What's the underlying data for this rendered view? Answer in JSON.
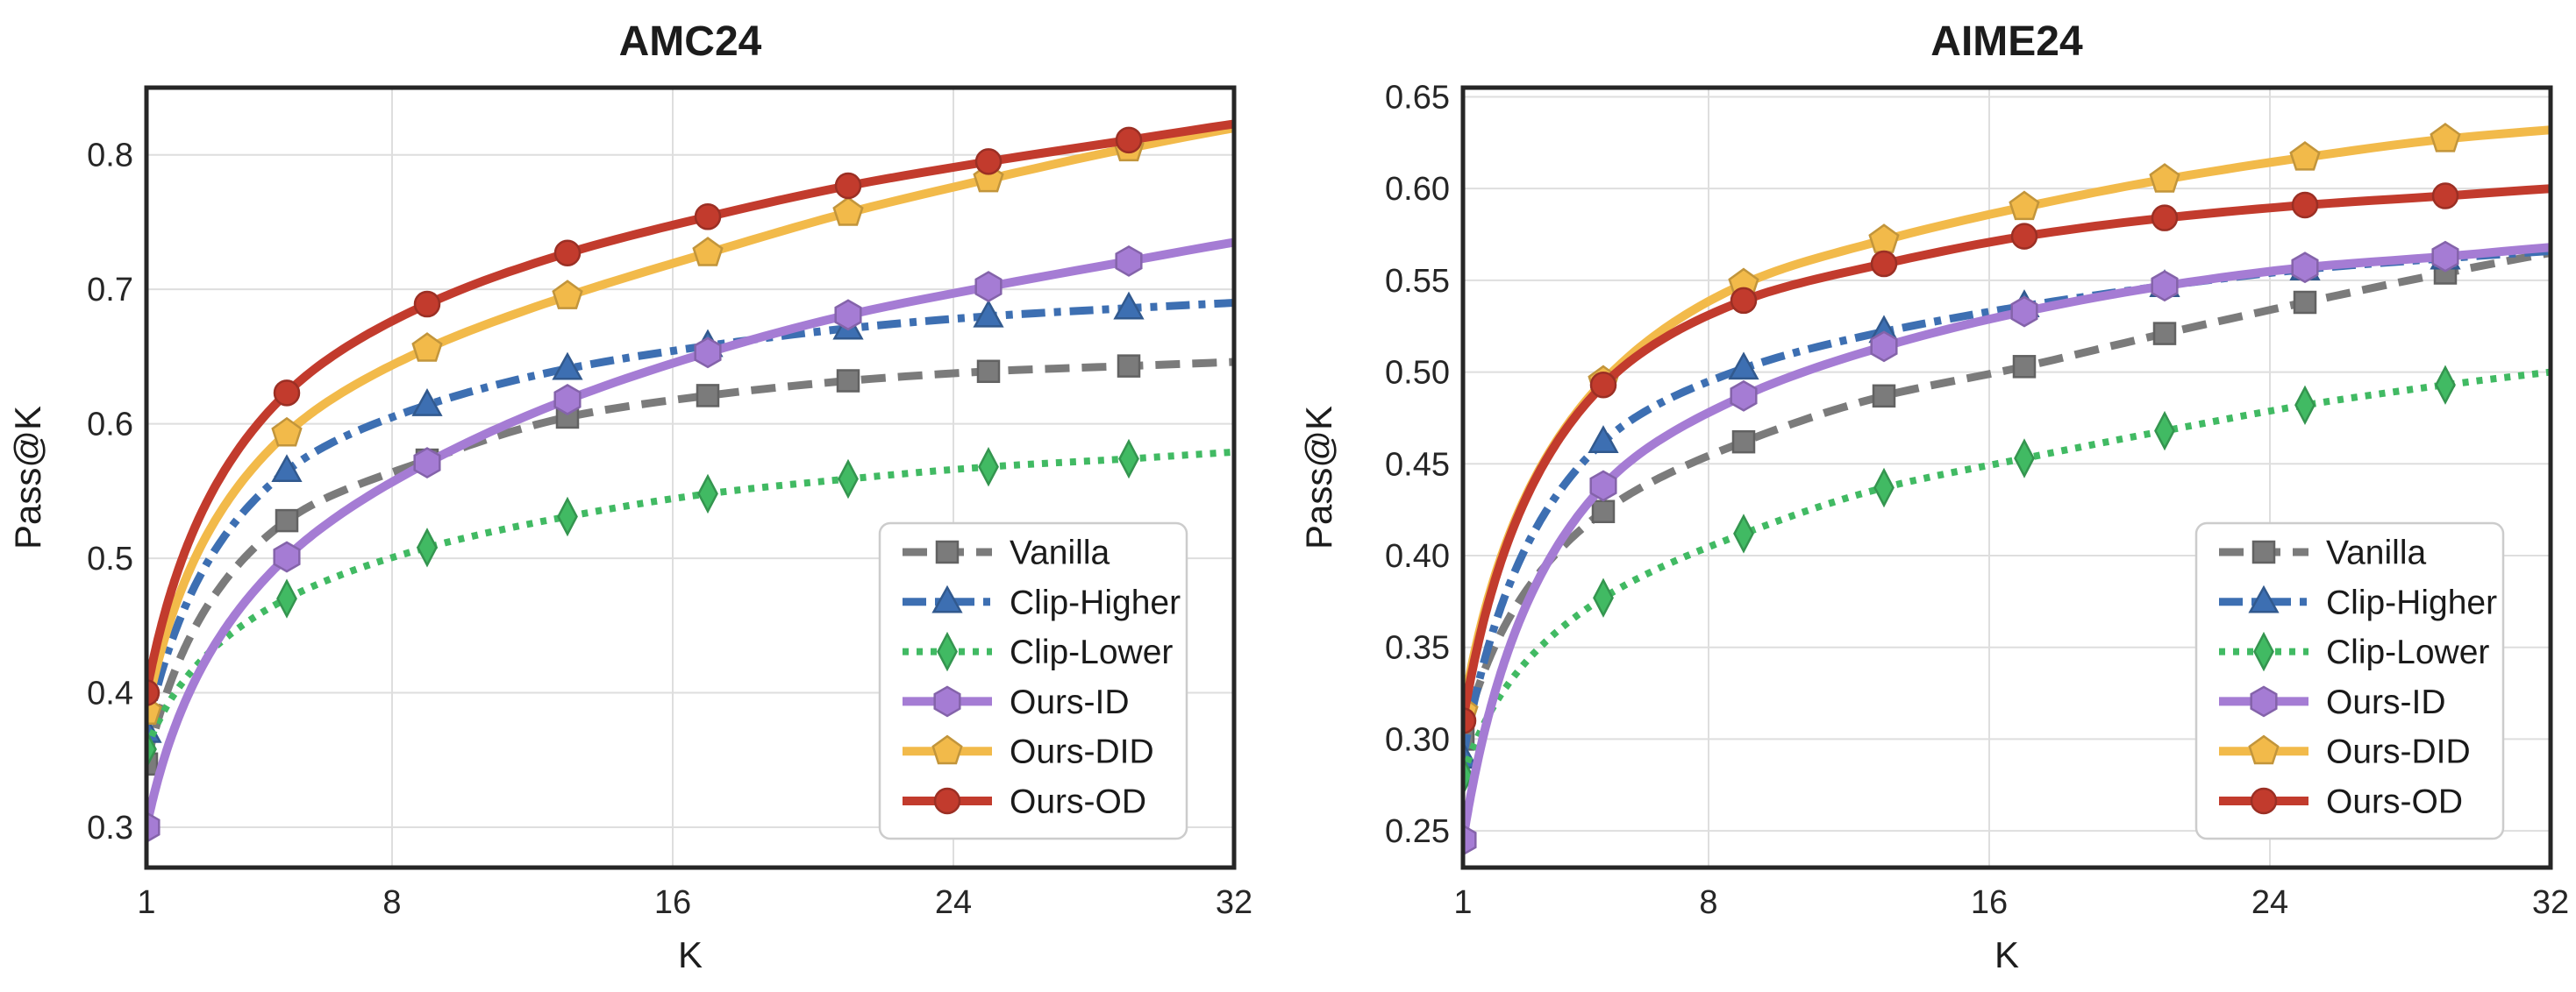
{
  "colors": {
    "background": "#ffffff",
    "frame": "#262626",
    "grid": "#dedede",
    "text": "#1c1c1c",
    "legend_border": "#cccccc",
    "legend_background": "#ffffff"
  },
  "chart_data": [
    {
      "type": "line",
      "title": "AMC24",
      "xlabel": "K",
      "ylabel": "Pass@K",
      "xlim": [
        1,
        32
      ],
      "ylim": [
        0.27,
        0.85
      ],
      "grid": true,
      "legend_position": "lower right",
      "x": [
        1,
        5,
        9,
        13,
        17,
        21,
        25,
        29,
        32
      ],
      "markers_at_x": [
        1,
        5,
        9,
        13,
        17,
        21,
        25,
        29
      ],
      "x_ticks": [
        1,
        8,
        16,
        24,
        32
      ],
      "x_tick_labels": [
        "1",
        "8",
        "16",
        "24",
        "32"
      ],
      "y_ticks": [
        0.3,
        0.4,
        0.5,
        0.6,
        0.7,
        0.8
      ],
      "y_tick_labels": [
        "0.3",
        "0.4",
        "0.5",
        "0.6",
        "0.7",
        "0.8"
      ],
      "series": [
        {
          "name": "Vanilla",
          "color": "#7b7b7b",
          "linestyle": "dashed",
          "marker": "square",
          "values": [
            0.347,
            0.528,
            0.573,
            0.605,
            0.621,
            0.632,
            0.639,
            0.643,
            0.646
          ]
        },
        {
          "name": "Clip-Higher",
          "color": "#3d6fb2",
          "linestyle": "dashdot",
          "marker": "triangle",
          "values": [
            0.371,
            0.565,
            0.614,
            0.641,
            0.658,
            0.671,
            0.68,
            0.686,
            0.69
          ]
        },
        {
          "name": "Clip-Lower",
          "color": "#41ba63",
          "linestyle": "dotted",
          "marker": "thin-diamond",
          "values": [
            0.358,
            0.47,
            0.508,
            0.531,
            0.548,
            0.559,
            0.568,
            0.574,
            0.579
          ]
        },
        {
          "name": "Ours-ID",
          "color": "#a57cd4",
          "linestyle": "solid",
          "marker": "hexagon",
          "values": [
            0.3,
            0.501,
            0.571,
            0.618,
            0.653,
            0.681,
            0.702,
            0.721,
            0.735
          ]
        },
        {
          "name": "Ours-DID",
          "color": "#f2ba4a",
          "linestyle": "solid",
          "marker": "pentagon",
          "values": [
            0.386,
            0.593,
            0.656,
            0.695,
            0.727,
            0.757,
            0.782,
            0.805,
            0.82
          ]
        },
        {
          "name": "Ours-OD",
          "color": "#c23b2d",
          "linestyle": "solid",
          "marker": "circle",
          "values": [
            0.4,
            0.623,
            0.689,
            0.727,
            0.754,
            0.777,
            0.795,
            0.811,
            0.823
          ]
        }
      ]
    },
    {
      "type": "line",
      "title": "AIME24",
      "xlabel": "K",
      "ylabel": "Pass@K",
      "xlim": [
        1,
        32
      ],
      "ylim": [
        0.23,
        0.655
      ],
      "grid": true,
      "legend_position": "lower right",
      "x": [
        1,
        5,
        9,
        13,
        17,
        21,
        25,
        29,
        32
      ],
      "markers_at_x": [
        1,
        5,
        9,
        13,
        17,
        21,
        25,
        29
      ],
      "x_ticks": [
        1,
        8,
        16,
        24,
        32
      ],
      "x_tick_labels": [
        "1",
        "8",
        "16",
        "24",
        "32"
      ],
      "y_ticks": [
        0.25,
        0.3,
        0.35,
        0.4,
        0.45,
        0.5,
        0.55,
        0.6,
        0.65
      ],
      "y_tick_labels": [
        "0.25",
        "0.30",
        "0.35",
        "0.40",
        "0.45",
        "0.50",
        "0.55",
        "0.60",
        "0.65"
      ],
      "series": [
        {
          "name": "Vanilla",
          "color": "#7b7b7b",
          "linestyle": "dashed",
          "marker": "square",
          "values": [
            0.3,
            0.424,
            0.462,
            0.487,
            0.503,
            0.521,
            0.538,
            0.554,
            0.565
          ]
        },
        {
          "name": "Clip-Higher",
          "color": "#3d6fb2",
          "linestyle": "dashdot",
          "marker": "triangle",
          "values": [
            0.29,
            0.462,
            0.502,
            0.522,
            0.536,
            0.547,
            0.556,
            0.562,
            0.566
          ]
        },
        {
          "name": "Clip-Lower",
          "color": "#41ba63",
          "linestyle": "dotted",
          "marker": "thin-diamond",
          "values": [
            0.28,
            0.377,
            0.412,
            0.437,
            0.453,
            0.468,
            0.482,
            0.493,
            0.5
          ]
        },
        {
          "name": "Ours-ID",
          "color": "#a57cd4",
          "linestyle": "solid",
          "marker": "hexagon",
          "values": [
            0.245,
            0.438,
            0.487,
            0.514,
            0.533,
            0.547,
            0.557,
            0.563,
            0.568
          ]
        },
        {
          "name": "Ours-DID",
          "color": "#f2ba4a",
          "linestyle": "solid",
          "marker": "pentagon",
          "values": [
            0.315,
            0.495,
            0.548,
            0.572,
            0.59,
            0.605,
            0.617,
            0.627,
            0.632
          ]
        },
        {
          "name": "Ours-OD",
          "color": "#c23b2d",
          "linestyle": "solid",
          "marker": "circle",
          "values": [
            0.31,
            0.493,
            0.539,
            0.559,
            0.574,
            0.584,
            0.591,
            0.596,
            0.6
          ]
        }
      ]
    }
  ]
}
